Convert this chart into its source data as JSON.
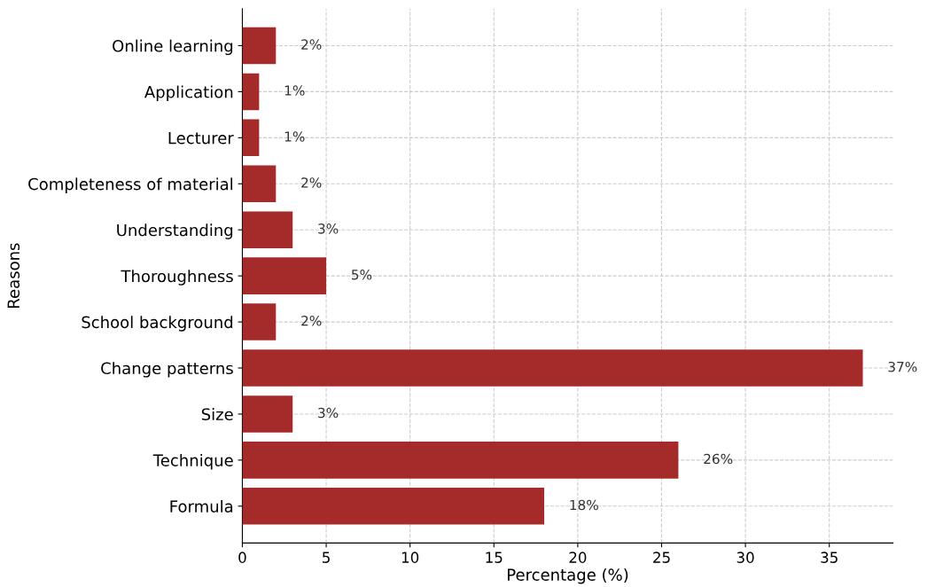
{
  "chart_data": {
    "type": "bar",
    "orientation": "horizontal",
    "xlabel": "Percentage (%)",
    "ylabel": "Reasons",
    "categories": [
      "Online learning",
      "Application",
      "Lecturer",
      "Completeness of material",
      "Understanding",
      "Thoroughness",
      "School background",
      "Change patterns",
      "Size",
      "Technique",
      "Formula"
    ],
    "values": [
      2,
      1,
      1,
      2,
      3,
      5,
      2,
      37,
      3,
      26,
      18
    ],
    "value_labels": [
      "2%",
      "1%",
      "1%",
      "2%",
      "3%",
      "5%",
      "2%",
      "37%",
      "3%",
      "26%",
      "18%"
    ],
    "color": "#a52a2a",
    "xlim": [
      0,
      38.8
    ],
    "xticks": [
      0,
      5,
      10,
      15,
      20,
      25,
      30,
      35
    ],
    "grid": true
  }
}
